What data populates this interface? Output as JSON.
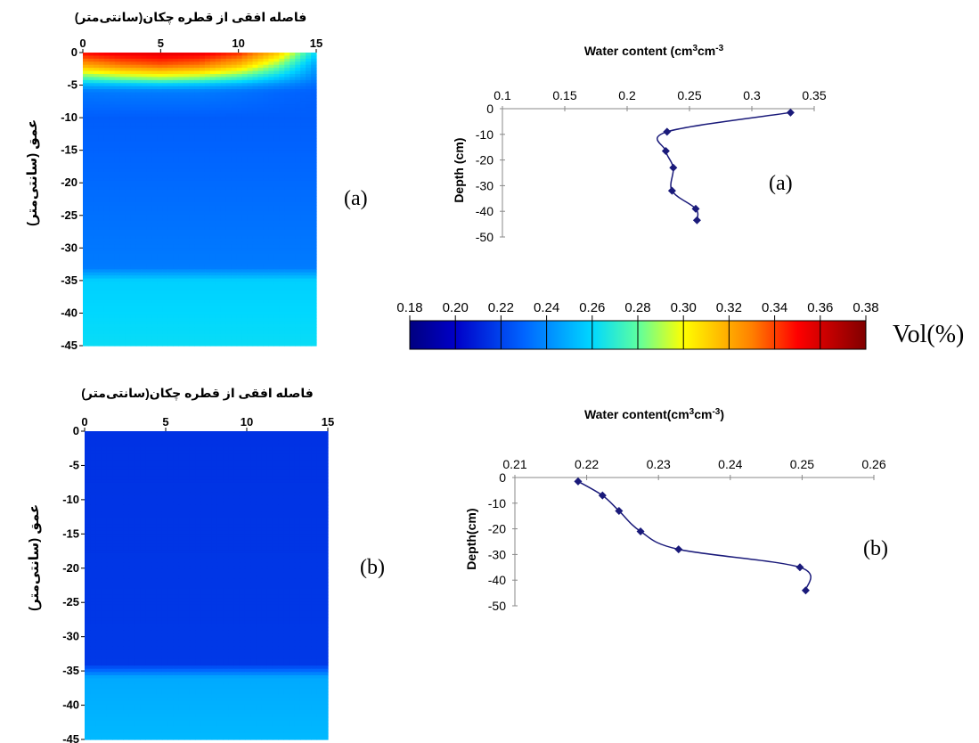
{
  "panel_labels": {
    "a": "(a)",
    "b": "(b)"
  },
  "colormap_stops": [
    {
      "v": 0.18,
      "c": "#000080"
    },
    {
      "v": 0.2,
      "c": "#0000c8"
    },
    {
      "v": 0.23,
      "c": "#0064ff"
    },
    {
      "v": 0.26,
      "c": "#00d8ff"
    },
    {
      "v": 0.28,
      "c": "#5cffa0"
    },
    {
      "v": 0.3,
      "c": "#ffff00"
    },
    {
      "v": 0.33,
      "c": "#ff8000"
    },
    {
      "v": 0.35,
      "c": "#ff0000"
    },
    {
      "v": 0.38,
      "c": "#800000"
    }
  ],
  "chart_data": [
    {
      "id": "contour-a",
      "type": "heatmap",
      "title": "فاصله افقی از قطره چکان(سانتی‌متر)",
      "ylabel": "عمق (سانتی‌متر)",
      "xlim": [
        0,
        15
      ],
      "ylim": [
        -45,
        0
      ],
      "xticks": [
        "0",
        "5",
        "10",
        "15"
      ],
      "yticks": [
        "0",
        "-5",
        "-10",
        "-15",
        "-20",
        "-25",
        "-30",
        "-35",
        "-40",
        "-45"
      ],
      "field": {
        "x": [
          0,
          2.5,
          5,
          7.5,
          10,
          12.5,
          15
        ],
        "y": [
          0,
          -2,
          -4,
          -5,
          -6,
          -10,
          -33,
          -35,
          -45
        ],
        "values": [
          [
            0.35,
            0.355,
            0.357,
            0.355,
            0.345,
            0.315,
            0.26
          ],
          [
            0.32,
            0.33,
            0.335,
            0.33,
            0.315,
            0.285,
            0.245
          ],
          [
            0.275,
            0.283,
            0.287,
            0.283,
            0.272,
            0.255,
            0.237
          ],
          [
            0.25,
            0.253,
            0.255,
            0.253,
            0.248,
            0.24,
            0.232
          ],
          [
            0.235,
            0.236,
            0.236,
            0.236,
            0.234,
            0.231,
            0.229
          ],
          [
            0.228,
            0.228,
            0.228,
            0.228,
            0.228,
            0.228,
            0.228
          ],
          [
            0.236,
            0.236,
            0.236,
            0.236,
            0.236,
            0.236,
            0.236
          ],
          [
            0.258,
            0.258,
            0.258,
            0.258,
            0.258,
            0.258,
            0.258
          ],
          [
            0.262,
            0.262,
            0.262,
            0.262,
            0.262,
            0.262,
            0.262
          ]
        ]
      }
    },
    {
      "id": "contour-b",
      "type": "heatmap",
      "title": "فاصله افقی از قطره چکان(سانتی‌متر)",
      "ylabel": "عمق (سانتی‌متر)",
      "xlim": [
        0,
        15
      ],
      "ylim": [
        -45,
        0
      ],
      "xticks": [
        "0",
        "5",
        "10",
        "15"
      ],
      "yticks": [
        "0",
        "-5",
        "-10",
        "-15",
        "-20",
        "-25",
        "-30",
        "-35",
        "-40",
        "-45"
      ],
      "field": {
        "x": [
          0,
          15
        ],
        "y": [
          0,
          -34,
          -35,
          -36,
          -45
        ],
        "values": [
          [
            0.215,
            0.215
          ],
          [
            0.217,
            0.217
          ],
          [
            0.232,
            0.232
          ],
          [
            0.248,
            0.248
          ],
          [
            0.252,
            0.252
          ]
        ]
      }
    },
    {
      "id": "profile-a",
      "type": "line",
      "title": "Water content (cm3cm-3",
      "title_parts": {
        "pre": "Water content (cm",
        "sup1": "3",
        "mid": "cm",
        "sup2": "-3"
      },
      "ylabel": "Depth (cm)",
      "xlim": [
        0.1,
        0.35
      ],
      "ylim": [
        -50,
        0
      ],
      "xticks": [
        "0.1",
        "0.15",
        "0.2",
        "0.25",
        "0.3",
        "0.35"
      ],
      "yticks": [
        "0",
        "-10",
        "-20",
        "-30",
        "-40",
        "-50"
      ],
      "grid": false,
      "series": [
        {
          "color": "#1a1a7a",
          "x": [
            0.331,
            0.232,
            0.231,
            0.237,
            0.236,
            0.255,
            0.256
          ],
          "y": [
            -1.5,
            -9,
            -16.5,
            -23,
            -32,
            -39,
            -43.5
          ]
        }
      ]
    },
    {
      "id": "profile-b",
      "type": "line",
      "title": "Water content(cm3cm-3)",
      "title_parts": {
        "pre": "Water content(cm",
        "sup1": "3",
        "mid": "cm",
        "sup2": "-3",
        "post": ")"
      },
      "ylabel": "Depth(cm)",
      "xlim": [
        0.21,
        0.26
      ],
      "ylim": [
        -50,
        0
      ],
      "xticks": [
        "0.21",
        "0.22",
        "0.23",
        "0.24",
        "0.25",
        "0.26"
      ],
      "yticks": [
        "0",
        "-10",
        "-20",
        "-30",
        "-40",
        "-50"
      ],
      "grid": false,
      "series": [
        {
          "color": "#1a1a7a",
          "x": [
            0.2188,
            0.2222,
            0.2245,
            0.2275,
            0.2328,
            0.2497,
            0.2505
          ],
          "y": [
            -1.5,
            -7,
            -13,
            -21,
            -28,
            -35,
            -44
          ]
        }
      ]
    },
    {
      "id": "colorbar",
      "type": "heatmap",
      "ticks": [
        "0.18",
        "0.20",
        "0.22",
        "0.24",
        "0.26",
        "0.28",
        "0.30",
        "0.32",
        "0.34",
        "0.36",
        "0.38"
      ],
      "range": [
        0.18,
        0.38
      ],
      "unit_label": "Vol(%)"
    }
  ]
}
